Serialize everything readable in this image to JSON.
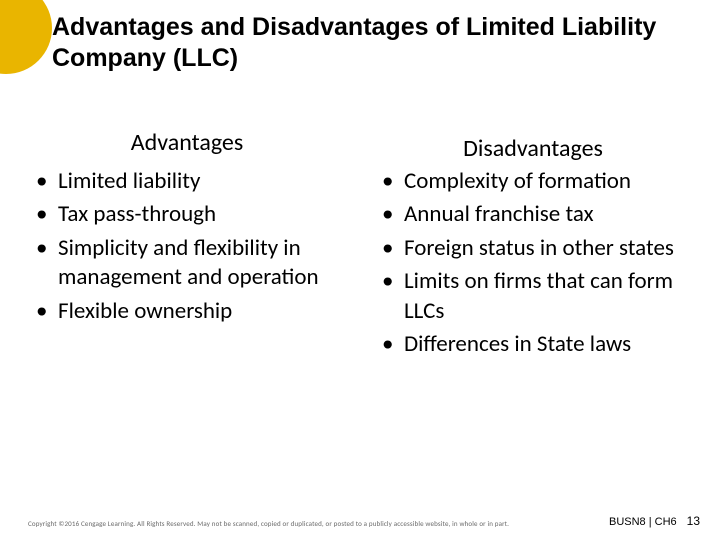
{
  "accent_color": "#e9b500",
  "title": "Advantages and Disadvantages of Limited Liability Company (LLC)",
  "columns": {
    "left": {
      "heading": "Advantages",
      "items": [
        "Limited liability",
        "Tax pass-through",
        "Simplicity and flexibility in management and operation",
        "Flexible ownership"
      ]
    },
    "right": {
      "heading": "Disadvantages",
      "items": [
        "Complexity of formation",
        "Annual franchise tax",
        "Foreign status in other states",
        "Limits on firms that can form LLCs",
        "Differences in State laws"
      ]
    }
  },
  "footer": {
    "copyright": "Copyright ©2016 Cengage Learning. All Rights Reserved. May not be scanned, copied or duplicated, or posted to a publicly accessible website, in whole or in part.",
    "course": "BUSN8 | CH6",
    "page": "13"
  }
}
